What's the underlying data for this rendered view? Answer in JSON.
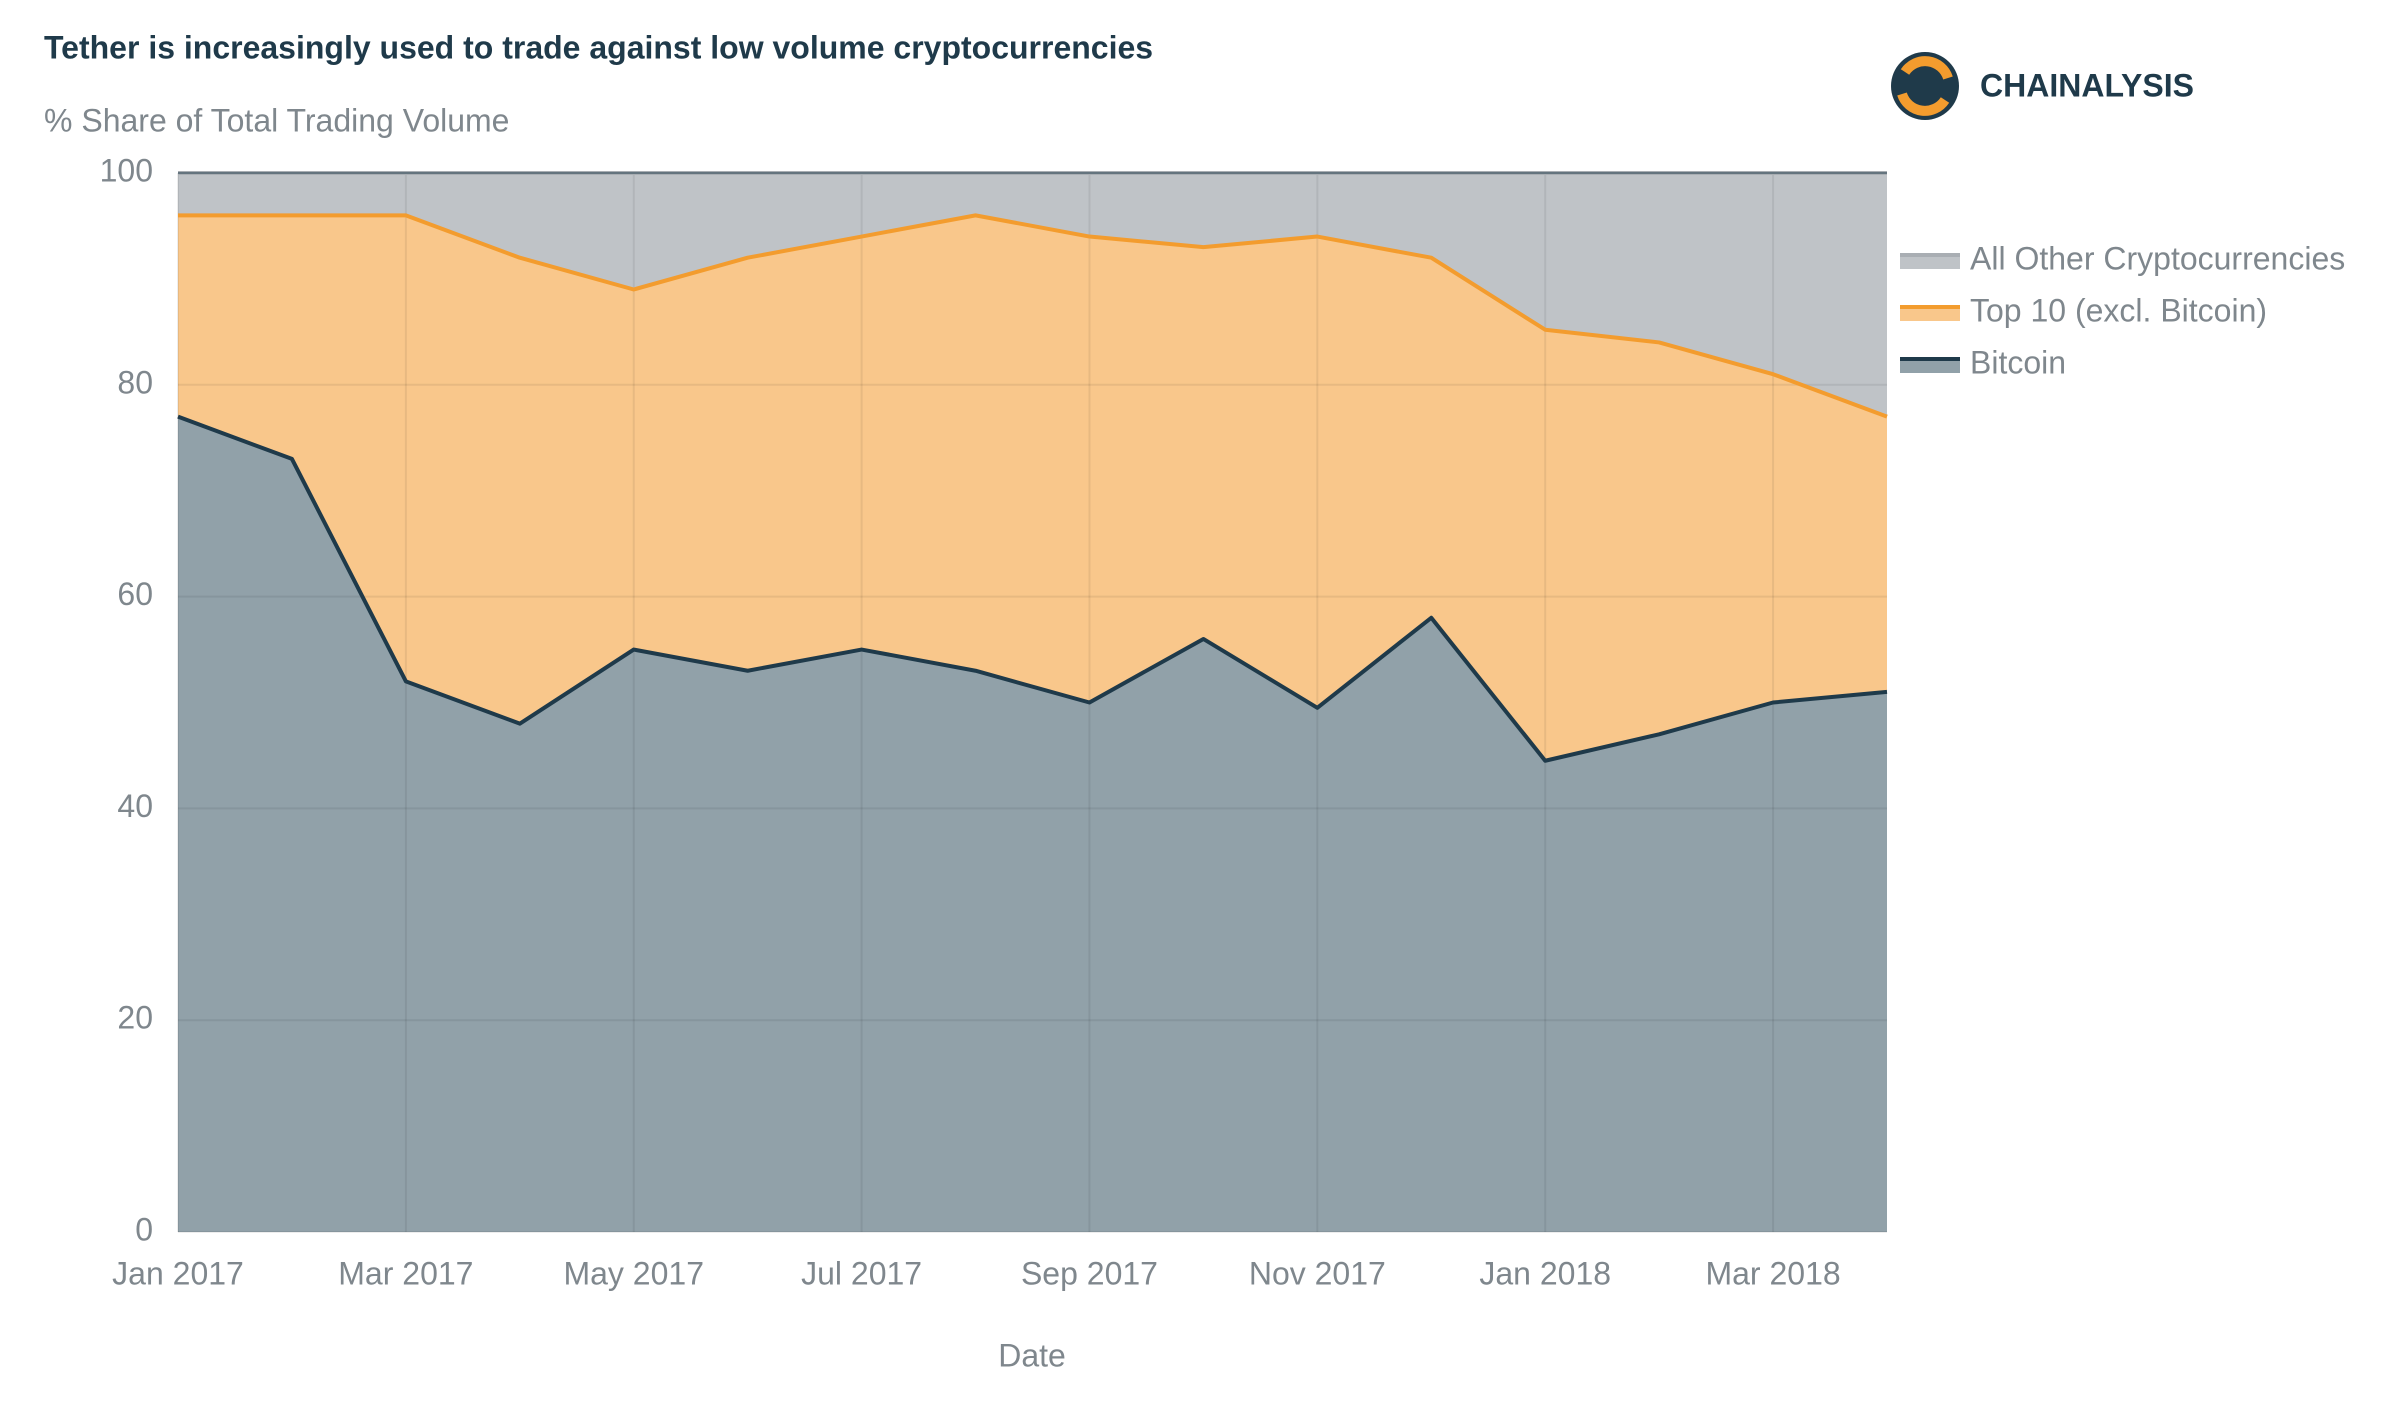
{
  "chart_data": {
    "type": "stacked_area",
    "title": "Tether is increasingly used to trade against low volume cryptocurrencies",
    "subtitle": "% Share of Total Trading Volume",
    "brand": "CHAINALYSIS",
    "x_label": "Date",
    "categories": [
      "Jan 2017",
      null,
      "Mar 2017",
      null,
      "May 2017",
      null,
      "Jul 2017",
      null,
      "Sep 2017",
      null,
      "Nov 2017",
      null,
      "Jan 2018",
      null,
      "Mar 2018",
      null
    ],
    "series": [
      {
        "name": "Bitcoin",
        "color": "#91a1a9",
        "line_color": "#1f3a4a",
        "values": [
          77,
          73,
          52,
          48,
          55,
          53,
          55,
          53,
          50,
          56,
          49.5,
          58,
          44.5,
          47,
          50,
          51
        ]
      },
      {
        "name": "Top 10 (excl. Bitcoin)",
        "color": "#f9c78b",
        "line_color": "#f39c2e",
        "values": [
          19,
          23,
          44,
          44,
          34,
          39,
          39,
          43,
          44,
          37,
          44.5,
          34,
          40.7,
          37,
          31,
          26
        ]
      },
      {
        "name": "All Other Cryptocurrencies",
        "color": "#bfc3c7",
        "line_color": "#a9aeb3",
        "values": [
          4,
          4,
          4,
          8,
          11,
          8,
          6,
          4,
          6,
          7,
          6,
          8,
          14.8,
          16,
          19,
          23
        ]
      }
    ],
    "ylim": [
      0,
      100
    ],
    "yticks": [
      0,
      20,
      40,
      60,
      80,
      100
    ],
    "grid": true,
    "legend": "right"
  }
}
